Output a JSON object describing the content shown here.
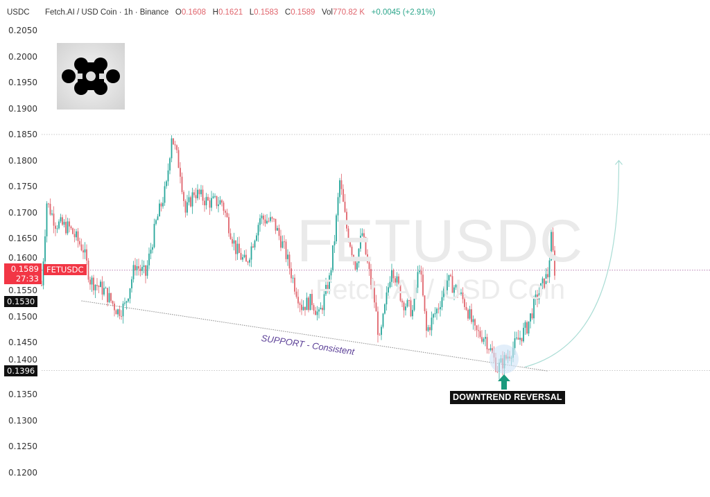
{
  "header": {
    "currency": "USDC",
    "symbol_desc": "Fetch.AI / USD Coin · 1h · Binance",
    "open_label": "O",
    "open": "0.1608",
    "high_label": "H",
    "high": "0.1621",
    "low_label": "L",
    "low": "0.1583",
    "close_label": "C",
    "close": "0.1589",
    "vol_label": "Vol",
    "vol": "770.82 K",
    "change": "+0.0045 (+2.91%)"
  },
  "badges": {
    "last_price": "0.1589",
    "countdown": "27:33",
    "symbol": "FETUSDC",
    "level1": "0.1530",
    "level2": "0.1396"
  },
  "watermark": {
    "line1": "FETUSDC",
    "line2": "Fetch.AI / USD Coin"
  },
  "annotations": {
    "support": "SUPPORT - Consistent",
    "reversal": "DOWNTREND REVERSAL"
  },
  "colors": {
    "up": "#26a69a",
    "down": "#e0646c",
    "last_price": "#f23645",
    "support_text": "#5a3e96",
    "arrow": "#1a9a7e"
  },
  "logo": "fetch-ai-logo",
  "chart_data": {
    "type": "candlestick",
    "interval": "1h",
    "ylim": [
      0.115,
      0.205
    ],
    "y_ticks": [
      "0.2050",
      "0.2000",
      "0.1950",
      "0.1900",
      "0.1850",
      "0.1800",
      "0.1750",
      "0.1700",
      "0.1650",
      "0.1600",
      "0.1550",
      "0.1500",
      "0.1450",
      "0.1400",
      "0.1350",
      "0.1300",
      "0.1250",
      "0.1200"
    ],
    "horizontal_levels": [
      0.185,
      0.1589,
      0.1396
    ],
    "support_line": {
      "from": {
        "bar": 23,
        "price": 0.153
      },
      "to": {
        "bar": 292,
        "price": 0.1395
      }
    },
    "projection_arrow": {
      "from": {
        "bar": 274,
        "price": 0.14
      },
      "to": {
        "bar": 331,
        "price": 0.18
      }
    },
    "close_path": [
      [
        0,
        0.156
      ],
      [
        3,
        0.172
      ],
      [
        8,
        0.168
      ],
      [
        16,
        0.167
      ],
      [
        24,
        0.163
      ],
      [
        28,
        0.157
      ],
      [
        36,
        0.155
      ],
      [
        44,
        0.151
      ],
      [
        48,
        0.152
      ],
      [
        54,
        0.16
      ],
      [
        60,
        0.158
      ],
      [
        66,
        0.168
      ],
      [
        72,
        0.175
      ],
      [
        75,
        0.185
      ],
      [
        80,
        0.178
      ],
      [
        83,
        0.17
      ],
      [
        88,
        0.174
      ],
      [
        96,
        0.172
      ],
      [
        104,
        0.172
      ],
      [
        112,
        0.163
      ],
      [
        118,
        0.16
      ],
      [
        126,
        0.169
      ],
      [
        134,
        0.168
      ],
      [
        140,
        0.163
      ],
      [
        146,
        0.156
      ],
      [
        150,
        0.152
      ],
      [
        156,
        0.153
      ],
      [
        160,
        0.15
      ],
      [
        166,
        0.157
      ],
      [
        169,
        0.165
      ],
      [
        172,
        0.176
      ],
      [
        176,
        0.167
      ],
      [
        181,
        0.16
      ],
      [
        185,
        0.166
      ],
      [
        188,
        0.16
      ],
      [
        192,
        0.153
      ],
      [
        195,
        0.145
      ],
      [
        202,
        0.16
      ],
      [
        208,
        0.153
      ],
      [
        214,
        0.151
      ],
      [
        218,
        0.16
      ],
      [
        222,
        0.147
      ],
      [
        229,
        0.152
      ],
      [
        234,
        0.157
      ],
      [
        240,
        0.155
      ],
      [
        245,
        0.152
      ],
      [
        250,
        0.147
      ],
      [
        256,
        0.146
      ],
      [
        263,
        0.14
      ],
      [
        268,
        0.142
      ],
      [
        274,
        0.145
      ],
      [
        280,
        0.148
      ],
      [
        286,
        0.154
      ],
      [
        292,
        0.158
      ],
      [
        294,
        0.165
      ],
      [
        296,
        0.1589
      ]
    ]
  }
}
